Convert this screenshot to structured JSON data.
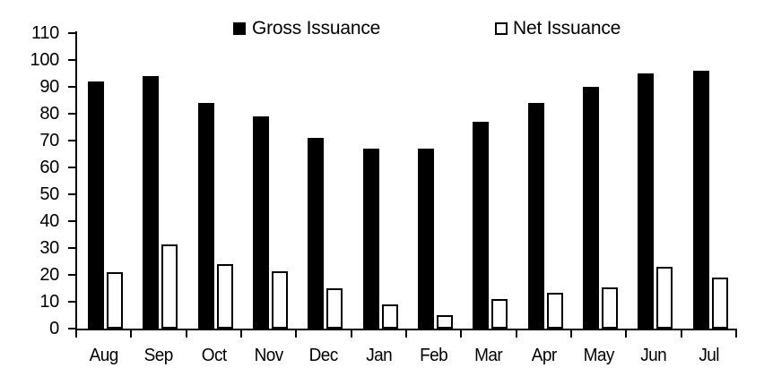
{
  "chart_data": {
    "type": "bar",
    "title": "",
    "categories": [
      "Aug",
      "Sep",
      "Oct",
      "Nov",
      "Dec",
      "Jan",
      "Feb",
      "Mar",
      "Apr",
      "May",
      "Jun",
      "Jul"
    ],
    "series": [
      {
        "name": "Gross Issuance",
        "style": "filled",
        "fill_color": "#000000",
        "values": [
          92,
          94,
          84,
          79,
          71,
          67,
          67,
          77,
          84,
          90,
          95,
          96
        ]
      },
      {
        "name": "Net Issuance",
        "style": "outlined",
        "fill_color": "#ffffff",
        "border_color": "#000000",
        "values": [
          21,
          31.5,
          24,
          21.5,
          15,
          9,
          5,
          11,
          13.5,
          15.5,
          23,
          19
        ]
      }
    ],
    "xlabel": "",
    "ylabel": "",
    "ylim": [
      0,
      110
    ],
    "ytick_interval": 10,
    "ytick_labels": [
      "0",
      "10",
      "20",
      "30",
      "40",
      "50",
      "60",
      "70",
      "80",
      "90",
      "100",
      "110"
    ],
    "legend_position": "top",
    "grid": false,
    "axis_color": "#000000",
    "background_color": "#ffffff",
    "text_color": "#000000"
  }
}
